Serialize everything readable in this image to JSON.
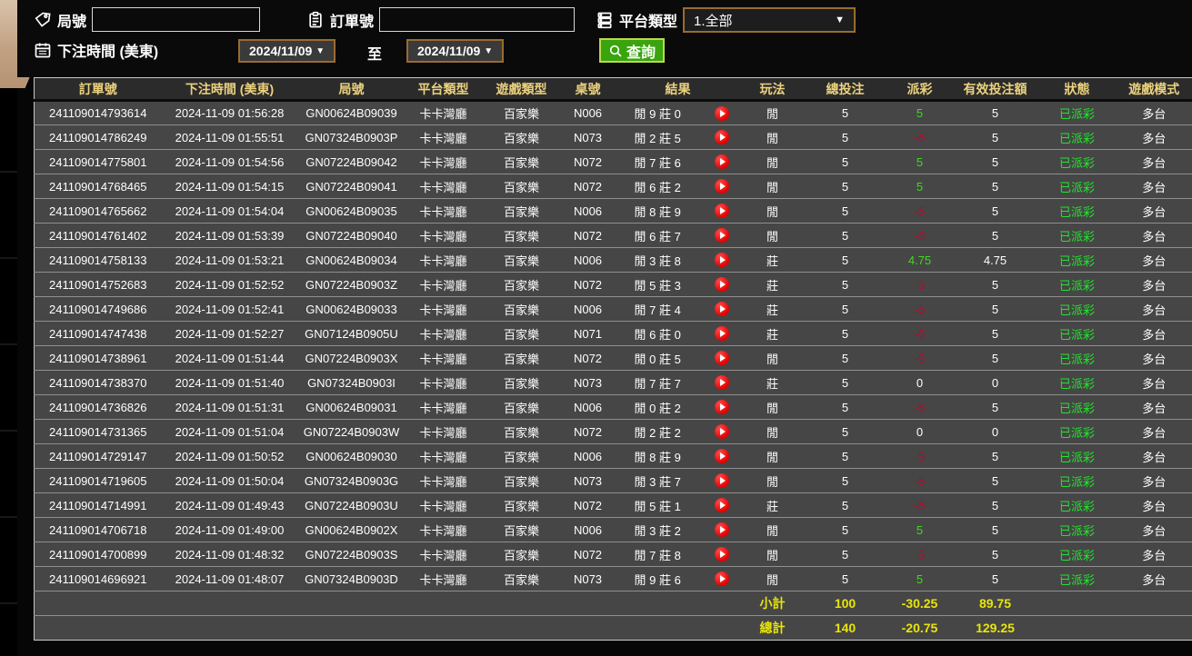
{
  "filters": {
    "round_label": "局號",
    "order_label": "訂單號",
    "platform_label": "平台類型",
    "platform_value": "1.全部",
    "time_label": "下注時間 (美東)",
    "date_from": "2024/11/09",
    "date_to": "2024/11/09",
    "to_label": "至",
    "search_label": "查詢"
  },
  "colors": {
    "header_gold": "#ecd27e",
    "payout_green": "#3fdb1c",
    "payout_red": "#c3032a",
    "status_green": "#22e42e",
    "footer_yellow": "#e8e50a",
    "button_green": "#3aa40f",
    "control_border_tan": "#9a6b2f"
  },
  "table": {
    "headers": [
      "訂單號",
      "下注時間 (美東)",
      "局號",
      "平台類型",
      "遊戲類型",
      "桌號",
      "結果",
      "玩法",
      "總投注",
      "派彩",
      "有效投注額",
      "狀態",
      "遊戲模式"
    ],
    "rows": [
      {
        "order": "241109014793614",
        "time": "2024-11-09 01:56:28",
        "round": "GN00624B09039",
        "platform": "卡卡灣廳",
        "game": "百家樂",
        "table_no": "N006",
        "result": "閒 9 莊 0",
        "play": "閒",
        "total_bet": "5",
        "payout": "5",
        "payout_tone": "pos",
        "valid_bet": "5",
        "status": "已派彩",
        "mode": "多台"
      },
      {
        "order": "241109014786249",
        "time": "2024-11-09 01:55:51",
        "round": "GN07324B0903P",
        "platform": "卡卡灣廳",
        "game": "百家樂",
        "table_no": "N073",
        "result": "閒 2 莊 5",
        "play": "閒",
        "total_bet": "5",
        "payout": "-5",
        "payout_tone": "neg",
        "valid_bet": "5",
        "status": "已派彩",
        "mode": "多台"
      },
      {
        "order": "241109014775801",
        "time": "2024-11-09 01:54:56",
        "round": "GN07224B09042",
        "platform": "卡卡灣廳",
        "game": "百家樂",
        "table_no": "N072",
        "result": "閒 7 莊 6",
        "play": "閒",
        "total_bet": "5",
        "payout": "5",
        "payout_tone": "pos",
        "valid_bet": "5",
        "status": "已派彩",
        "mode": "多台"
      },
      {
        "order": "241109014768465",
        "time": "2024-11-09 01:54:15",
        "round": "GN07224B09041",
        "platform": "卡卡灣廳",
        "game": "百家樂",
        "table_no": "N072",
        "result": "閒 6 莊 2",
        "play": "閒",
        "total_bet": "5",
        "payout": "5",
        "payout_tone": "pos",
        "valid_bet": "5",
        "status": "已派彩",
        "mode": "多台"
      },
      {
        "order": "241109014765662",
        "time": "2024-11-09 01:54:04",
        "round": "GN00624B09035",
        "platform": "卡卡灣廳",
        "game": "百家樂",
        "table_no": "N006",
        "result": "閒 8 莊 9",
        "play": "閒",
        "total_bet": "5",
        "payout": "-5",
        "payout_tone": "neg",
        "valid_bet": "5",
        "status": "已派彩",
        "mode": "多台"
      },
      {
        "order": "241109014761402",
        "time": "2024-11-09 01:53:39",
        "round": "GN07224B09040",
        "platform": "卡卡灣廳",
        "game": "百家樂",
        "table_no": "N072",
        "result": "閒 6 莊 7",
        "play": "閒",
        "total_bet": "5",
        "payout": "-5",
        "payout_tone": "neg",
        "valid_bet": "5",
        "status": "已派彩",
        "mode": "多台"
      },
      {
        "order": "241109014758133",
        "time": "2024-11-09 01:53:21",
        "round": "GN00624B09034",
        "platform": "卡卡灣廳",
        "game": "百家樂",
        "table_no": "N006",
        "result": "閒 3 莊 8",
        "play": "莊",
        "total_bet": "5",
        "payout": "4.75",
        "payout_tone": "pos",
        "valid_bet": "4.75",
        "status": "已派彩",
        "mode": "多台"
      },
      {
        "order": "241109014752683",
        "time": "2024-11-09 01:52:52",
        "round": "GN07224B0903Z",
        "platform": "卡卡灣廳",
        "game": "百家樂",
        "table_no": "N072",
        "result": "閒 5 莊 3",
        "play": "莊",
        "total_bet": "5",
        "payout": "-5",
        "payout_tone": "neg",
        "valid_bet": "5",
        "status": "已派彩",
        "mode": "多台"
      },
      {
        "order": "241109014749686",
        "time": "2024-11-09 01:52:41",
        "round": "GN00624B09033",
        "platform": "卡卡灣廳",
        "game": "百家樂",
        "table_no": "N006",
        "result": "閒 7 莊 4",
        "play": "莊",
        "total_bet": "5",
        "payout": "-5",
        "payout_tone": "neg",
        "valid_bet": "5",
        "status": "已派彩",
        "mode": "多台"
      },
      {
        "order": "241109014747438",
        "time": "2024-11-09 01:52:27",
        "round": "GN07124B0905U",
        "platform": "卡卡灣廳",
        "game": "百家樂",
        "table_no": "N071",
        "result": "閒 6 莊 0",
        "play": "莊",
        "total_bet": "5",
        "payout": "-5",
        "payout_tone": "neg",
        "valid_bet": "5",
        "status": "已派彩",
        "mode": "多台"
      },
      {
        "order": "241109014738961",
        "time": "2024-11-09 01:51:44",
        "round": "GN07224B0903X",
        "platform": "卡卡灣廳",
        "game": "百家樂",
        "table_no": "N072",
        "result": "閒 0 莊 5",
        "play": "閒",
        "total_bet": "5",
        "payout": "-5",
        "payout_tone": "neg",
        "valid_bet": "5",
        "status": "已派彩",
        "mode": "多台"
      },
      {
        "order": "241109014738370",
        "time": "2024-11-09 01:51:40",
        "round": "GN07324B0903I",
        "platform": "卡卡灣廳",
        "game": "百家樂",
        "table_no": "N073",
        "result": "閒 7 莊 7",
        "play": "莊",
        "total_bet": "5",
        "payout": "0",
        "payout_tone": "zero",
        "valid_bet": "0",
        "status": "已派彩",
        "mode": "多台"
      },
      {
        "order": "241109014736826",
        "time": "2024-11-09 01:51:31",
        "round": "GN00624B09031",
        "platform": "卡卡灣廳",
        "game": "百家樂",
        "table_no": "N006",
        "result": "閒 0 莊 2",
        "play": "閒",
        "total_bet": "5",
        "payout": "-5",
        "payout_tone": "neg",
        "valid_bet": "5",
        "status": "已派彩",
        "mode": "多台"
      },
      {
        "order": "241109014731365",
        "time": "2024-11-09 01:51:04",
        "round": "GN07224B0903W",
        "platform": "卡卡灣廳",
        "game": "百家樂",
        "table_no": "N072",
        "result": "閒 2 莊 2",
        "play": "閒",
        "total_bet": "5",
        "payout": "0",
        "payout_tone": "zero",
        "valid_bet": "0",
        "status": "已派彩",
        "mode": "多台"
      },
      {
        "order": "241109014729147",
        "time": "2024-11-09 01:50:52",
        "round": "GN00624B09030",
        "platform": "卡卡灣廳",
        "game": "百家樂",
        "table_no": "N006",
        "result": "閒 8 莊 9",
        "play": "閒",
        "total_bet": "5",
        "payout": "-5",
        "payout_tone": "neg",
        "valid_bet": "5",
        "status": "已派彩",
        "mode": "多台"
      },
      {
        "order": "241109014719605",
        "time": "2024-11-09 01:50:04",
        "round": "GN07324B0903G",
        "platform": "卡卡灣廳",
        "game": "百家樂",
        "table_no": "N073",
        "result": "閒 3 莊 7",
        "play": "閒",
        "total_bet": "5",
        "payout": "-5",
        "payout_tone": "neg",
        "valid_bet": "5",
        "status": "已派彩",
        "mode": "多台"
      },
      {
        "order": "241109014714991",
        "time": "2024-11-09 01:49:43",
        "round": "GN07224B0903U",
        "platform": "卡卡灣廳",
        "game": "百家樂",
        "table_no": "N072",
        "result": "閒 5 莊 1",
        "play": "莊",
        "total_bet": "5",
        "payout": "-5",
        "payout_tone": "neg",
        "valid_bet": "5",
        "status": "已派彩",
        "mode": "多台"
      },
      {
        "order": "241109014706718",
        "time": "2024-11-09 01:49:00",
        "round": "GN00624B0902X",
        "platform": "卡卡灣廳",
        "game": "百家樂",
        "table_no": "N006",
        "result": "閒 3 莊 2",
        "play": "閒",
        "total_bet": "5",
        "payout": "5",
        "payout_tone": "pos",
        "valid_bet": "5",
        "status": "已派彩",
        "mode": "多台"
      },
      {
        "order": "241109014700899",
        "time": "2024-11-09 01:48:32",
        "round": "GN07224B0903S",
        "platform": "卡卡灣廳",
        "game": "百家樂",
        "table_no": "N072",
        "result": "閒 7 莊 8",
        "play": "閒",
        "total_bet": "5",
        "payout": "-5",
        "payout_tone": "neg",
        "valid_bet": "5",
        "status": "已派彩",
        "mode": "多台"
      },
      {
        "order": "241109014696921",
        "time": "2024-11-09 01:48:07",
        "round": "GN07324B0903D",
        "platform": "卡卡灣廳",
        "game": "百家樂",
        "table_no": "N073",
        "result": "閒 9 莊 6",
        "play": "閒",
        "total_bet": "5",
        "payout": "5",
        "payout_tone": "pos",
        "valid_bet": "5",
        "status": "已派彩",
        "mode": "多台"
      }
    ],
    "subtotal": {
      "label": "小計",
      "total_bet": "100",
      "payout": "-30.25",
      "valid_bet": "89.75"
    },
    "grand_total": {
      "label": "總計",
      "total_bet": "140",
      "payout": "-20.75",
      "valid_bet": "129.25"
    }
  }
}
